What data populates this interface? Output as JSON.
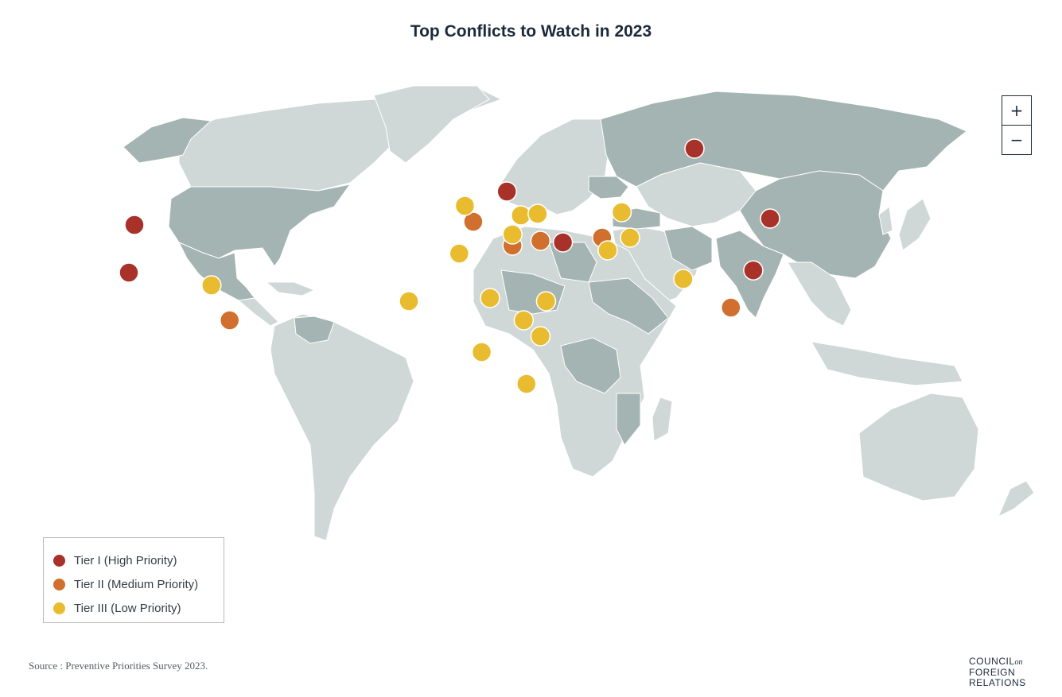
{
  "title": "Top Conflicts to Watch in 2023",
  "zoom": {
    "in_label": "+",
    "out_label": "−"
  },
  "legend": {
    "items": [
      {
        "tier": "tier1",
        "label": "Tier I (High Priority)",
        "color": "#a8322a"
      },
      {
        "tier": "tier2",
        "label": "Tier II (Medium Priority)",
        "color": "#d06f2e"
      },
      {
        "tier": "tier3",
        "label": "Tier III (Low Priority)",
        "color": "#e8bc2e"
      }
    ]
  },
  "colors": {
    "land_light": "#cfd8d6",
    "land_dark": "#a4b4b2",
    "background": "#ffffff"
  },
  "markers": [
    {
      "tier": "tier1",
      "lon": -100,
      "lat": 38
    },
    {
      "tier": "tier1",
      "lon": -102,
      "lat": 23
    },
    {
      "tier": "tier1",
      "lon": 33,
      "lat": 48.5
    },
    {
      "tier": "tier1",
      "lon": 100,
      "lat": 62
    },
    {
      "tier": "tier1",
      "lon": 127,
      "lat": 40
    },
    {
      "tier": "tier1",
      "lon": 121,
      "lat": 23.7
    },
    {
      "tier": "tier1",
      "lon": 53,
      "lat": 32.5
    },
    {
      "tier": "tier2",
      "lon": -66,
      "lat": 8
    },
    {
      "tier": "tier2",
      "lon": 21,
      "lat": 39
    },
    {
      "tier": "tier2",
      "lon": 35,
      "lat": 31.5
    },
    {
      "tier": "tier2",
      "lon": 45,
      "lat": 33
    },
    {
      "tier": "tier2",
      "lon": 67,
      "lat": 34
    },
    {
      "tier": "tier2",
      "lon": 113,
      "lat": 12
    },
    {
      "tier": "tier3",
      "lon": -72.5,
      "lat": 19
    },
    {
      "tier": "tier3",
      "lon": 18,
      "lat": 44
    },
    {
      "tier": "tier3",
      "lon": 38,
      "lat": 41
    },
    {
      "tier": "tier3",
      "lon": 44,
      "lat": 41.5
    },
    {
      "tier": "tier3",
      "lon": 35,
      "lat": 35
    },
    {
      "tier": "tier3",
      "lon": 74,
      "lat": 42
    },
    {
      "tier": "tier3",
      "lon": 77,
      "lat": 34
    },
    {
      "tier": "tier3",
      "lon": 69,
      "lat": 30
    },
    {
      "tier": "tier3",
      "lon": 96,
      "lat": 21
    },
    {
      "tier": "tier3",
      "lon": 16,
      "lat": 29
    },
    {
      "tier": "tier3",
      "lon": -2,
      "lat": 14
    },
    {
      "tier": "tier3",
      "lon": 27,
      "lat": 15
    },
    {
      "tier": "tier3",
      "lon": 47,
      "lat": 14
    },
    {
      "tier": "tier3",
      "lon": 39,
      "lat": 8
    },
    {
      "tier": "tier3",
      "lon": 45,
      "lat": 3
    },
    {
      "tier": "tier3",
      "lon": 24,
      "lat": -2
    },
    {
      "tier": "tier3",
      "lon": 40,
      "lat": -12
    }
  ],
  "source": "Source : Preventive Priorities Survey 2023.",
  "logo": {
    "line1": "COUNCIL",
    "on": "on",
    "line2": "FOREIGN",
    "line3": "RELATIONS"
  }
}
